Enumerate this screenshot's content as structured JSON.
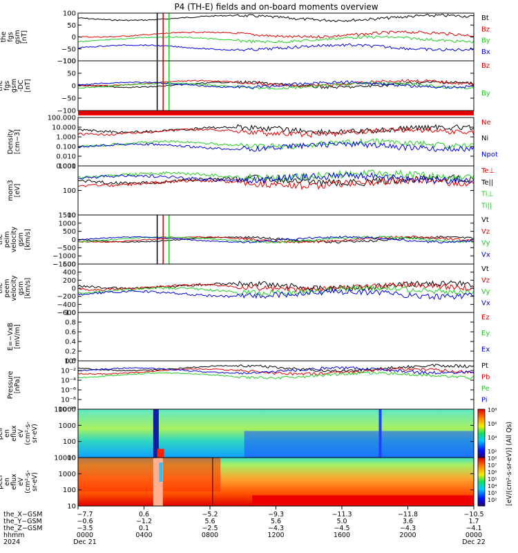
{
  "title": "P4 (TH-E) fields and on-board moments overview",
  "colors": {
    "black": "#000000",
    "red": "#dd0000",
    "green": "#22cc22",
    "blue": "#0000dd"
  },
  "panels": [
    {
      "id": "fgs",
      "ylabel": [
        "the",
        "fgs",
        "gsm",
        "[nT]"
      ],
      "ticks": [
        "100",
        "50",
        "0",
        "−50",
        "−100"
      ],
      "legend": [
        {
          "label": "Bt",
          "color": "#000000"
        },
        {
          "label": "Bz",
          "color": "#dd0000"
        },
        {
          "label": "By",
          "color": "#22cc22"
        },
        {
          "label": "Bx",
          "color": "#0000dd"
        }
      ]
    },
    {
      "id": "fgs_dc",
      "ylabel": [
        "the",
        "fgs",
        "gsm",
        "-DC",
        "[nT]"
      ],
      "ticks": [
        "100",
        "50",
        "0",
        "−50",
        "−100"
      ],
      "legend": [
        {
          "label": "Bz",
          "color": "#dd0000"
        },
        {
          "label": "By",
          "color": "#22cc22"
        }
      ]
    },
    {
      "id": "density",
      "ylabel": [
        "Density",
        "[cm−3]"
      ],
      "ticks": [
        "100.000",
        "10.000",
        "1.000",
        "0.100",
        "0.010",
        "0.001"
      ],
      "legend": [
        {
          "label": "Ne",
          "color": "#dd0000"
        },
        {
          "label": "Ni",
          "color": "#000000"
        },
        {
          "label": "Npot",
          "color": "#0000dd"
        }
      ]
    },
    {
      "id": "temp",
      "ylabel": [
        "mom3",
        "[eV]"
      ],
      "ticks": [
        "1000",
        "100",
        "10"
      ],
      "legend": [
        {
          "label": "Te⊥",
          "color": "#dd0000"
        },
        {
          "label": "Te||",
          "color": "#000000"
        },
        {
          "label": "Ti⊥",
          "color": "#22cc22"
        },
        {
          "label": "Ti||",
          "color": "#22cc22"
        }
      ]
    },
    {
      "id": "peim_v",
      "ylabel": [
        "the",
        "peim",
        "velocity",
        "gsm",
        "[km/s]"
      ],
      "ticks": [
        "1500",
        "1000",
        "500",
        "0",
        "−500",
        "−1000",
        "−1500"
      ],
      "legend": [
        {
          "label": "Vt",
          "color": "#000000"
        },
        {
          "label": "Vz",
          "color": "#dd0000"
        },
        {
          "label": "Vy",
          "color": "#22cc22"
        },
        {
          "label": "Vx",
          "color": "#0000dd"
        }
      ]
    },
    {
      "id": "peem_v",
      "ylabel": [
        "the",
        "peem",
        "velocity",
        "gsm",
        "[km/s]"
      ],
      "ticks": [
        "600",
        "400",
        "200",
        "0",
        "−200",
        "−400",
        "−600"
      ],
      "legend": [
        {
          "label": "Vt",
          "color": "#000000"
        },
        {
          "label": "Vz",
          "color": "#dd0000"
        },
        {
          "label": "Vy",
          "color": "#22cc22"
        },
        {
          "label": "Vx",
          "color": "#0000dd"
        }
      ]
    },
    {
      "id": "efield",
      "ylabel": [
        "E=−VxB",
        "[mV/m]"
      ],
      "ticks": [
        "1.0",
        "0.8",
        "0.6",
        "0.4",
        "0.2",
        "0.0"
      ],
      "legend": [
        {
          "label": "Ez",
          "color": "#dd0000"
        },
        {
          "label": "Ey",
          "color": "#22cc22"
        },
        {
          "label": "Ex",
          "color": "#0000dd"
        }
      ]
    },
    {
      "id": "pressure",
      "ylabel": [
        "Pressure",
        "[nPa]"
      ],
      "ticks": [
        "10⁰",
        "10⁻²",
        "10⁻⁴",
        "10⁻⁶",
        "10⁻⁸",
        "10⁻¹⁰"
      ],
      "legend": [
        {
          "label": "Pt",
          "color": "#000000"
        },
        {
          "label": "Pb",
          "color": "#dd0000"
        },
        {
          "label": "Pe",
          "color": "#22cc22"
        },
        {
          "label": "Pi",
          "color": "#0000dd"
        }
      ]
    },
    {
      "id": "peir",
      "ylabel": [
        "the",
        "peir",
        "en",
        "eflux",
        "eV",
        "(cm²-s-",
        "sr-eV)"
      ],
      "ticks": [
        "10000",
        "1000",
        "100",
        "10"
      ],
      "legend": []
    },
    {
      "id": "peer",
      "ylabel": [
        "the",
        "peer",
        "en",
        "eflux",
        "eV",
        "(cm²-s-",
        "sr-eV)"
      ],
      "ticks": [
        "10000",
        "1000",
        "100",
        "10"
      ],
      "legend": []
    }
  ],
  "colorbar": {
    "label": "[eV/(cm²-s-sr-eV)] (All Qs)",
    "top_ticks": [
      "10⁸",
      "10⁶",
      "10⁴",
      "10²"
    ],
    "bottom_ticks": [
      "10⁸",
      "10⁷",
      "10⁶",
      "10⁵",
      "10⁴",
      "10³",
      "10²"
    ]
  },
  "x_axis": {
    "rows": [
      {
        "label": "the_X−GSM",
        "values": [
          "−7.7",
          "0.6",
          "−5.2",
          "−9.3",
          "−11.3",
          "−11.8",
          "−10.5"
        ]
      },
      {
        "label": "the_Y−GSM",
        "values": [
          "−0.6",
          "−1.2",
          "5.6",
          "5.6",
          "5.0",
          "3.6",
          "1.7"
        ]
      },
      {
        "label": "the_Z−GSM",
        "values": [
          "−3.5",
          "0.1",
          "−2.5",
          "−4.3",
          "−4.5",
          "−4.3",
          "−4.1"
        ]
      },
      {
        "label": "hhmm",
        "values": [
          "0000",
          "0400",
          "0800",
          "1200",
          "1600",
          "2000",
          "0000"
        ]
      },
      {
        "label": "2024",
        "values": [
          "Dec 21",
          "",
          "",
          "",
          "",
          "",
          "Dec 22"
        ]
      }
    ]
  },
  "chart_data": {
    "type": "line",
    "title": "P4 (TH-E) fields and on-board moments overview",
    "x_time_range": [
      "2024-12-21 00:00",
      "2024-12-22 00:00"
    ],
    "x_ticks": [
      "0000",
      "0400",
      "0800",
      "1200",
      "1600",
      "2000",
      "0000"
    ],
    "panels": [
      {
        "name": "fgs gsm",
        "ylim": [
          -100,
          100
        ],
        "series": [
          {
            "name": "Bt",
            "level": "30-100"
          },
          {
            "name": "Bz",
            "level": "~10"
          },
          {
            "name": "By",
            "level": "~-10"
          },
          {
            "name": "Bx",
            "level": "-20 to -60"
          }
        ]
      },
      {
        "name": "fgs gsm -DC",
        "ylim": [
          -120,
          100
        ]
      },
      {
        "name": "Density",
        "scale": "log",
        "ylim": [
          0.001,
          100
        ],
        "series": [
          {
            "name": "Ne",
            "level": "~2"
          },
          {
            "name": "Ni",
            "level": "~0.2"
          },
          {
            "name": "Npot",
            "level": "~0.1"
          }
        ]
      },
      {
        "name": "mom3 temperature",
        "scale": "log",
        "ylim": [
          5,
          5000
        ]
      },
      {
        "name": "peim velocity gsm",
        "ylim": [
          -1500,
          1500
        ]
      },
      {
        "name": "peem velocity gsm",
        "ylim": [
          -600,
          600
        ]
      },
      {
        "name": "E=-VxB",
        "ylim": [
          0,
          1
        ]
      },
      {
        "name": "Pressure",
        "scale": "log",
        "ylim": [
          1e-10,
          1
        ]
      },
      {
        "name": "peir en eflux",
        "type": "heatmap",
        "scale": "log",
        "ylim": [
          10,
          20000
        ]
      },
      {
        "name": "peer en eflux",
        "type": "heatmap",
        "scale": "log",
        "ylim": [
          10,
          20000
        ]
      }
    ]
  }
}
